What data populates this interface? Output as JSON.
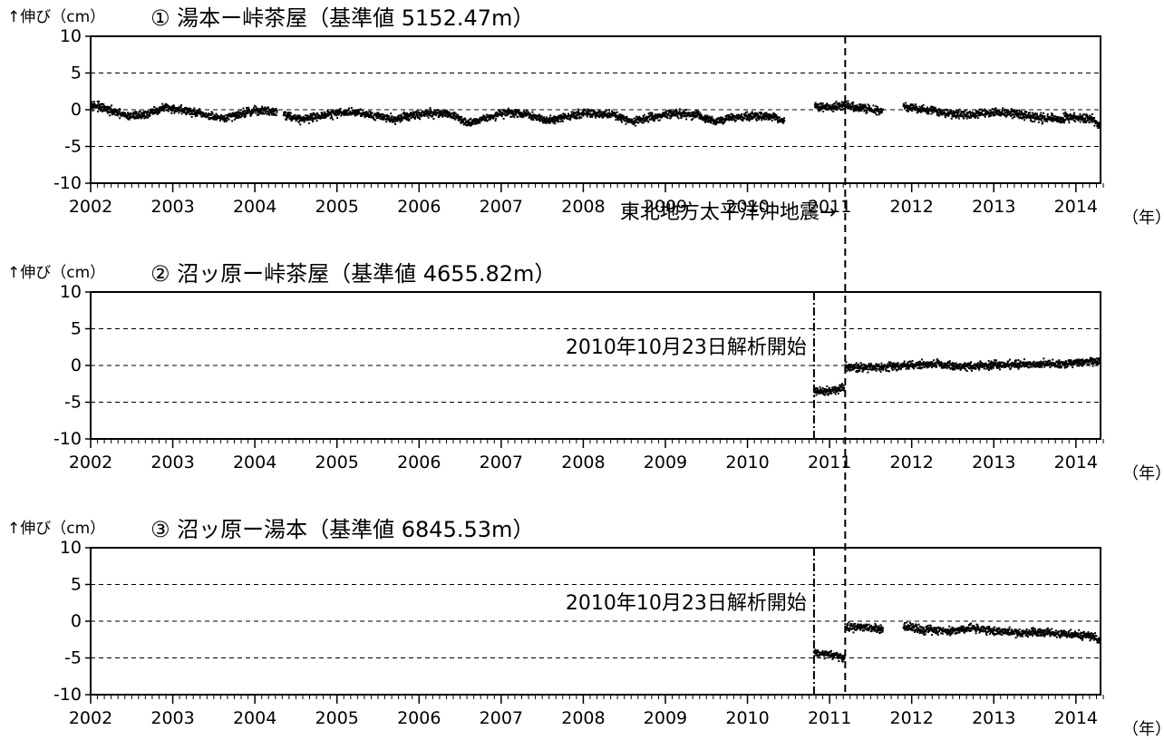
{
  "chart_data": [
    {
      "type": "scatter",
      "title": "① 湯本ー峠茶屋（基準値 5152.47m）",
      "ylabel": "↑伸び（cm）",
      "xunit": "（年）",
      "xlim": [
        2002,
        2014.3
      ],
      "ylim": [
        -10,
        10
      ],
      "x_ticks": [
        "2002",
        "2003",
        "2004",
        "2005",
        "2006",
        "2007",
        "2008",
        "2009",
        "2010",
        "2011",
        "2012",
        "2013",
        "2014"
      ],
      "y_ticks": [
        "10",
        "5",
        "0",
        "-5",
        "-10"
      ],
      "grid": "dashed at y = 5, 0, -5",
      "series": [
        {
          "segments": [
            {
              "start": 2002.0,
              "end": 2004.27,
              "points": [
                [
                  2002.0,
                  0.8
                ],
                [
                  2002.2,
                  0.0
                ],
                [
                  2002.45,
                  -0.9
                ],
                [
                  2002.7,
                  -0.6
                ],
                [
                  2002.9,
                  0.3
                ],
                [
                  2003.1,
                  0.0
                ],
                [
                  2003.35,
                  -0.6
                ],
                [
                  2003.6,
                  -1.3
                ],
                [
                  2003.8,
                  -0.6
                ],
                [
                  2004.0,
                  -0.1
                ],
                [
                  2004.27,
                  -0.2
                ]
              ]
            },
            {
              "start": 2004.35,
              "end": 2010.45,
              "points": [
                [
                  2004.35,
                  -0.6
                ],
                [
                  2004.55,
                  -1.3
                ],
                [
                  2004.75,
                  -0.9
                ],
                [
                  2005.0,
                  -0.5
                ],
                [
                  2005.2,
                  -0.3
                ],
                [
                  2005.45,
                  -0.7
                ],
                [
                  2005.7,
                  -1.3
                ],
                [
                  2005.9,
                  -0.8
                ],
                [
                  2006.1,
                  -0.5
                ],
                [
                  2006.35,
                  -0.5
                ],
                [
                  2006.6,
                  -1.8
                ],
                [
                  2006.85,
                  -1.0
                ],
                [
                  2007.05,
                  -0.4
                ],
                [
                  2007.3,
                  -0.6
                ],
                [
                  2007.55,
                  -1.5
                ],
                [
                  2007.8,
                  -0.9
                ],
                [
                  2008.05,
                  -0.5
                ],
                [
                  2008.35,
                  -0.7
                ],
                [
                  2008.6,
                  -1.7
                ],
                [
                  2008.85,
                  -1.0
                ],
                [
                  2009.1,
                  -0.5
                ],
                [
                  2009.35,
                  -0.7
                ],
                [
                  2009.6,
                  -1.6
                ],
                [
                  2009.85,
                  -1.0
                ],
                [
                  2010.1,
                  -0.8
                ],
                [
                  2010.3,
                  -0.9
                ],
                [
                  2010.45,
                  -1.6
                ]
              ]
            },
            {
              "start": 2010.82,
              "end": 2011.65,
              "points": [
                [
                  2010.82,
                  0.5
                ],
                [
                  2011.0,
                  0.3
                ],
                [
                  2011.2,
                  0.6
                ],
                [
                  2011.4,
                  0.2
                ],
                [
                  2011.65,
                  -0.2
                ]
              ]
            },
            {
              "start": 2011.9,
              "end": 2014.3,
              "points": [
                [
                  2011.9,
                  0.4
                ],
                [
                  2012.1,
                  0.1
                ],
                [
                  2012.3,
                  -0.2
                ],
                [
                  2012.5,
                  -0.6
                ],
                [
                  2012.75,
                  -0.7
                ],
                [
                  2013.0,
                  -0.4
                ],
                [
                  2013.25,
                  -0.5
                ],
                [
                  2013.5,
                  -1.1
                ],
                [
                  2013.75,
                  -1.2
                ],
                [
                  2014.0,
                  -1.0
                ],
                [
                  2014.2,
                  -1.2
                ],
                [
                  2014.3,
                  -2.5
                ]
              ]
            }
          ]
        }
      ],
      "event_lines": [
        {
          "x": 2011.19,
          "style": "dashed"
        }
      ],
      "annotations": [
        {
          "text": "東北地方太平洋沖地震→",
          "x": 2011.19,
          "y": -13.8
        }
      ]
    },
    {
      "type": "scatter",
      "title": "② 沼ッ原ー峠茶屋（基準値 4655.82m）",
      "ylabel": "↑伸び（cm）",
      "xunit": "（年）",
      "xlim": [
        2002,
        2014.3
      ],
      "ylim": [
        -10,
        10
      ],
      "x_ticks": [
        "2002",
        "2003",
        "2004",
        "2005",
        "2006",
        "2007",
        "2008",
        "2009",
        "2010",
        "2011",
        "2012",
        "2013",
        "2014"
      ],
      "y_ticks": [
        "10",
        "5",
        "0",
        "-5",
        "-10"
      ],
      "grid": "dashed at y = 5, 0, -5",
      "series": [
        {
          "segments": [
            {
              "start": 2010.81,
              "end": 2011.18,
              "points": [
                [
                  2010.81,
                  -3.6
                ],
                [
                  2011.0,
                  -3.4
                ],
                [
                  2011.18,
                  -3.1
                ]
              ]
            },
            {
              "start": 2011.19,
              "end": 2014.3,
              "points": [
                [
                  2011.19,
                  -0.3
                ],
                [
                  2011.5,
                  -0.2
                ],
                [
                  2011.8,
                  -0.1
                ],
                [
                  2012.1,
                  0.1
                ],
                [
                  2012.3,
                  0.3
                ],
                [
                  2012.5,
                  -0.1
                ],
                [
                  2012.8,
                  -0.1
                ],
                [
                  2013.1,
                  0.1
                ],
                [
                  2013.4,
                  0.2
                ],
                [
                  2013.7,
                  0.2
                ],
                [
                  2014.0,
                  0.3
                ],
                [
                  2014.3,
                  0.6
                ]
              ]
            }
          ]
        }
      ],
      "event_lines": [
        {
          "x": 2010.81,
          "style": "dashdot"
        },
        {
          "x": 2011.19,
          "style": "dashed"
        }
      ],
      "annotations": [
        {
          "text": "2010年10月23日解析開始",
          "x": 2010.81,
          "y": 2.6
        }
      ]
    },
    {
      "type": "scatter",
      "title": "③ 沼ッ原ー湯本（基準値 6845.53m）",
      "ylabel": "↑伸び（cm）",
      "xunit": "（年）",
      "xlim": [
        2002,
        2014.3
      ],
      "ylim": [
        -10,
        10
      ],
      "x_ticks": [
        "2002",
        "2003",
        "2004",
        "2005",
        "2006",
        "2007",
        "2008",
        "2009",
        "2010",
        "2011",
        "2012",
        "2013",
        "2014"
      ],
      "y_ticks": [
        "10",
        "5",
        "0",
        "-5",
        "-10"
      ],
      "grid": "dashed at y = 5, 0, -5",
      "series": [
        {
          "segments": [
            {
              "start": 2010.81,
              "end": 2011.18,
              "points": [
                [
                  2010.81,
                  -4.3
                ],
                [
                  2011.0,
                  -4.6
                ],
                [
                  2011.18,
                  -5.0
                ]
              ]
            },
            {
              "start": 2011.19,
              "end": 2011.65,
              "points": [
                [
                  2011.19,
                  -0.8
                ],
                [
                  2011.4,
                  -0.9
                ],
                [
                  2011.65,
                  -1.1
                ]
              ]
            },
            {
              "start": 2011.9,
              "end": 2014.3,
              "points": [
                [
                  2011.9,
                  -0.8
                ],
                [
                  2012.2,
                  -1.2
                ],
                [
                  2012.5,
                  -1.3
                ],
                [
                  2012.7,
                  -0.9
                ],
                [
                  2013.0,
                  -1.3
                ],
                [
                  2013.3,
                  -1.6
                ],
                [
                  2013.6,
                  -1.4
                ],
                [
                  2013.9,
                  -1.8
                ],
                [
                  2014.2,
                  -2.0
                ],
                [
                  2014.3,
                  -2.8
                ]
              ]
            }
          ]
        }
      ],
      "event_lines": [
        {
          "x": 2010.81,
          "style": "dashdot"
        },
        {
          "x": 2011.19,
          "style": "dashed"
        }
      ],
      "annotations": [
        {
          "text": "2010年10月23日解析開始",
          "x": 2010.81,
          "y": 2.6
        }
      ]
    }
  ]
}
